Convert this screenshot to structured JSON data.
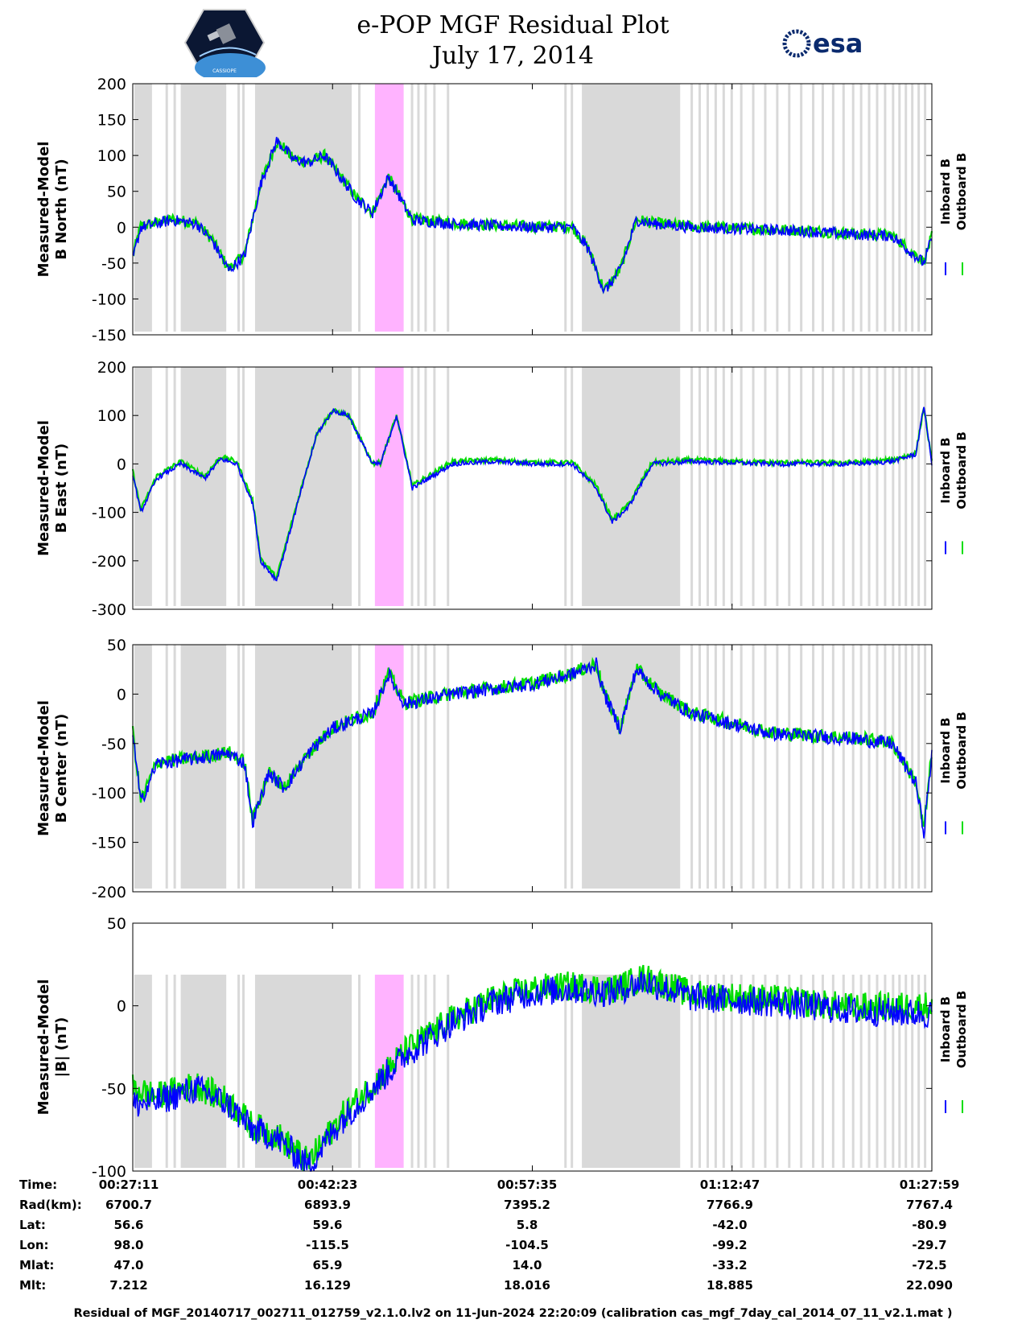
{
  "header": {
    "title_line1": "e-POP MGF Residual Plot",
    "title_line2": "July 17, 2014",
    "left_logo_text": "CASSIOPE",
    "right_logo_text": "esa"
  },
  "colors": {
    "inboard": "#0000ff",
    "outboard": "#00dd00",
    "shade": "#d9d9d9",
    "highlight": "#ffb3ff"
  },
  "chart_data": [
    {
      "type": "line",
      "ylabel_line1": "Measured-Model",
      "ylabel_line2": "B North (nT)",
      "ylim": [
        -150,
        200
      ],
      "yticks": [
        "200",
        "150",
        "100",
        "50",
        "0",
        "-50",
        "-100",
        "-150"
      ],
      "ytick_values": [
        200,
        150,
        100,
        50,
        0,
        -50,
        -100,
        -150
      ],
      "legend": [
        "Inboard B",
        "Outboard B"
      ],
      "x": [
        0,
        0.01,
        0.03,
        0.05,
        0.08,
        0.1,
        0.12,
        0.14,
        0.16,
        0.18,
        0.19,
        0.2,
        0.22,
        0.24,
        0.26,
        0.28,
        0.3,
        0.32,
        0.35,
        0.4,
        0.45,
        0.5,
        0.55,
        0.57,
        0.59,
        0.61,
        0.63,
        0.65,
        0.7,
        0.75,
        0.8,
        0.85,
        0.9,
        0.95,
        0.99,
        1.0
      ],
      "series": [
        {
          "name": "Inboard B",
          "noise": 8,
          "values": [
            -45,
            0,
            5,
            10,
            5,
            -20,
            -60,
            -40,
            60,
            120,
            110,
            95,
            90,
            100,
            70,
            40,
            20,
            70,
            10,
            5,
            2,
            0,
            0,
            -30,
            -90,
            -60,
            10,
            5,
            0,
            -2,
            -4,
            -6,
            -10,
            -12,
            -50,
            -15
          ]
        },
        {
          "name": "Outboard B",
          "noise": 8,
          "values": [
            -40,
            2,
            6,
            11,
            6,
            -18,
            -58,
            -38,
            61,
            119,
            110,
            96,
            91,
            100,
            71,
            41,
            21,
            70,
            11,
            6,
            3,
            1,
            1,
            -29,
            -88,
            -59,
            11,
            6,
            1,
            -1,
            -3,
            -5,
            -9,
            -11,
            -48,
            -13
          ]
        }
      ]
    },
    {
      "type": "line",
      "ylabel_line1": "Measured-Model",
      "ylabel_line2": "B East (nT)",
      "ylim": [
        -300,
        200
      ],
      "yticks": [
        "200",
        "100",
        "0",
        "-100",
        "-200",
        "-300"
      ],
      "ytick_values": [
        200,
        100,
        0,
        -100,
        -200,
        -300
      ],
      "legend": [
        "Inboard B",
        "Outboard B"
      ],
      "x": [
        0,
        0.01,
        0.03,
        0.06,
        0.09,
        0.11,
        0.13,
        0.15,
        0.16,
        0.18,
        0.21,
        0.23,
        0.25,
        0.27,
        0.3,
        0.31,
        0.33,
        0.35,
        0.4,
        0.45,
        0.5,
        0.55,
        0.58,
        0.6,
        0.62,
        0.65,
        0.7,
        0.8,
        0.85,
        0.9,
        0.95,
        0.98,
        0.99,
        1.0
      ],
      "series": [
        {
          "name": "Inboard B",
          "noise": 5,
          "values": [
            -20,
            -100,
            -30,
            0,
            -30,
            10,
            0,
            -80,
            -200,
            -240,
            -60,
            60,
            110,
            100,
            0,
            0,
            100,
            -50,
            0,
            5,
            0,
            0,
            -50,
            -120,
            -90,
            0,
            5,
            0,
            0,
            0,
            5,
            20,
            120,
            0
          ]
        },
        {
          "name": "Outboard B",
          "noise": 5,
          "values": [
            -15,
            -95,
            -25,
            5,
            -25,
            15,
            5,
            -75,
            -195,
            -235,
            -55,
            62,
            110,
            100,
            2,
            2,
            100,
            -45,
            5,
            8,
            3,
            3,
            -45,
            -115,
            -85,
            3,
            8,
            3,
            3,
            3,
            8,
            22,
            118,
            2
          ]
        }
      ]
    },
    {
      "type": "line",
      "ylabel_line1": "Measured-Model",
      "ylabel_line2": "B Center (nT)",
      "ylim": [
        -200,
        50
      ],
      "yticks": [
        "50",
        "0",
        "-50",
        "-100",
        "-150",
        "-200"
      ],
      "ytick_values": [
        50,
        0,
        -50,
        -100,
        -150,
        -200
      ],
      "legend": [
        "Inboard B",
        "Outboard B"
      ],
      "x": [
        0,
        0.01,
        0.03,
        0.08,
        0.12,
        0.14,
        0.15,
        0.17,
        0.19,
        0.22,
        0.25,
        0.28,
        0.3,
        0.32,
        0.34,
        0.4,
        0.5,
        0.55,
        0.58,
        0.59,
        0.61,
        0.63,
        0.66,
        0.7,
        0.8,
        0.9,
        0.95,
        0.98,
        0.99,
        1.0
      ],
      "series": [
        {
          "name": "Inboard B",
          "noise": 7,
          "values": [
            -40,
            -110,
            -70,
            -65,
            -60,
            -70,
            -130,
            -80,
            -95,
            -60,
            -35,
            -25,
            -20,
            20,
            -10,
            0,
            10,
            20,
            30,
            0,
            -35,
            25,
            0,
            -20,
            -40,
            -45,
            -50,
            -90,
            -140,
            -60
          ]
        },
        {
          "name": "Outboard B",
          "noise": 7,
          "values": [
            -38,
            -108,
            -69,
            -64,
            -59,
            -69,
            -128,
            -79,
            -94,
            -59,
            -34,
            -24,
            -19,
            21,
            -9,
            1,
            11,
            21,
            31,
            1,
            -34,
            26,
            1,
            -19,
            -39,
            -44,
            -49,
            -89,
            -138,
            -58
          ]
        }
      ]
    },
    {
      "type": "line",
      "ylabel_line1": "Measured-Model",
      "ylabel_line2": "|B| (nT)",
      "ylim": [
        -100,
        50
      ],
      "yticks": [
        "50",
        "0",
        "-50",
        "-100"
      ],
      "ytick_values": [
        50,
        0,
        -50,
        -100
      ],
      "legend": [
        "Inboard B",
        "Outboard B"
      ],
      "x": [
        0,
        0.03,
        0.08,
        0.12,
        0.15,
        0.18,
        0.22,
        0.26,
        0.3,
        0.34,
        0.4,
        0.45,
        0.5,
        0.55,
        0.6,
        0.64,
        0.7,
        0.8,
        0.9,
        1.0
      ],
      "series": [
        {
          "name": "Inboard B",
          "noise": 9,
          "values": [
            -60,
            -58,
            -50,
            -60,
            -75,
            -80,
            -97,
            -70,
            -50,
            -30,
            -10,
            2,
            8,
            10,
            8,
            15,
            5,
            2,
            -3,
            -5
          ]
        },
        {
          "name": "Outboard B",
          "noise": 9,
          "values": [
            -50,
            -55,
            -48,
            -58,
            -73,
            -78,
            -95,
            -68,
            -48,
            -28,
            -8,
            4,
            10,
            12,
            10,
            17,
            7,
            4,
            -1,
            0
          ]
        }
      ]
    }
  ],
  "shading": {
    "gray_bands": [
      [
        0.0,
        0.022
      ],
      [
        0.058,
        0.115
      ],
      [
        0.151,
        0.272
      ],
      [
        0.56,
        0.683
      ]
    ],
    "gray_lines": [
      0.041,
      0.051,
      0.131,
      0.137,
      0.282,
      0.348,
      0.356,
      0.365,
      0.376,
      0.393,
      0.54,
      0.548,
      0.698,
      0.708,
      0.718,
      0.728,
      0.738,
      0.748,
      0.76,
      0.775,
      0.79,
      0.805,
      0.82,
      0.835,
      0.85,
      0.862,
      0.875,
      0.888,
      0.9,
      0.91,
      0.92,
      0.93,
      0.94,
      0.95,
      0.958,
      0.966,
      0.974,
      0.982,
      0.99
    ],
    "pink_band": [
      0.303,
      0.339
    ]
  },
  "xaxis": {
    "tick_positions": [
      0,
      0.25,
      0.5,
      0.75,
      1.0
    ]
  },
  "info_table": {
    "labels": [
      "Time:",
      "Rad(km):",
      "Lat:",
      "Lon:",
      "Mlat:",
      "Mlt:"
    ],
    "columns": [
      [
        "00:27:11",
        "6700.7",
        "56.6",
        "98.0",
        "47.0",
        "7.212"
      ],
      [
        "00:42:23",
        "6893.9",
        "59.6",
        "-115.5",
        "65.9",
        "16.129"
      ],
      [
        "00:57:35",
        "7395.2",
        "5.8",
        "-104.5",
        "14.0",
        "18.016"
      ],
      [
        "01:12:47",
        "7766.9",
        "-42.0",
        "-99.2",
        "-33.2",
        "18.885"
      ],
      [
        "01:27:59",
        "7767.4",
        "-80.9",
        "-29.7",
        "-72.5",
        "22.090"
      ]
    ]
  },
  "footer": "Residual of MGF_20140717_002711_012759_v2.1.0.lv2 on 11-Jun-2024 22:20:09 (calibration cas_mgf_7day_cal_2014_07_11_v2.1.mat )"
}
